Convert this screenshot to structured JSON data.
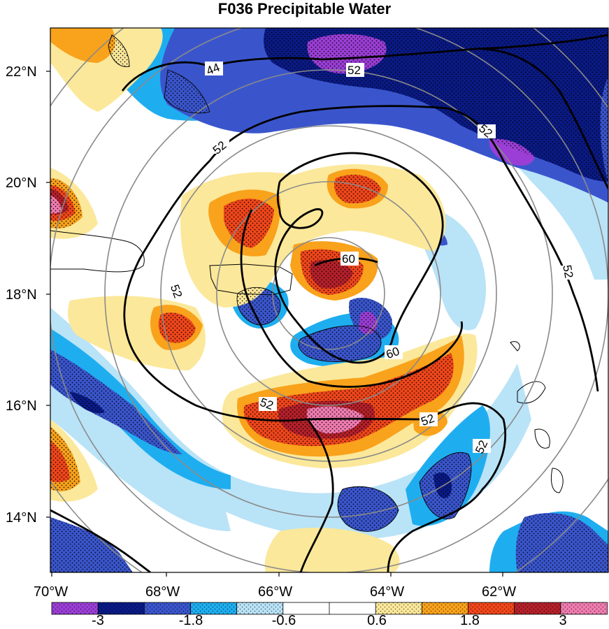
{
  "title": "F036 Precipitable Water",
  "map": {
    "latitude_labels": [
      "22°N",
      "20°N",
      "18°N",
      "16°N",
      "14°N"
    ],
    "longitude_labels": [
      "70°W",
      "68°W",
      "66°W",
      "64°W",
      "62°W"
    ],
    "contour_labels": [
      "44",
      "52",
      "52",
      "52",
      "52",
      "60",
      "60",
      "52",
      "52",
      "52",
      "52"
    ],
    "stippling": "dots"
  },
  "colorbar": {
    "tick_labels": [
      "-3",
      "-1.8",
      "-0.6",
      "0.6",
      "1.8",
      "3"
    ],
    "colors": [
      "#9b3ed6",
      "#0a1a86",
      "#3a55cc",
      "#1eaef0",
      "#b9e3f7",
      "#ffffff",
      "#ffffff",
      "#fbe89a",
      "#f9a21b",
      "#f0461b",
      "#b4202a",
      "#f07cb0"
    ]
  }
}
